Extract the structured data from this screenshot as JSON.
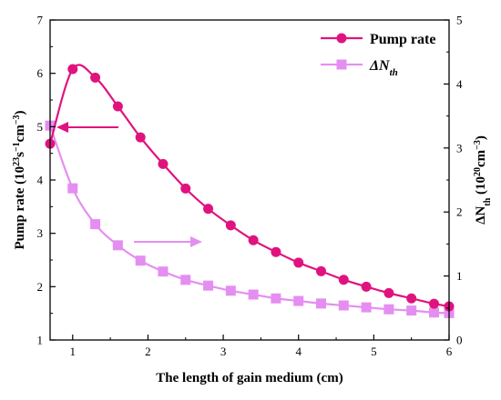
{
  "chart_data": {
    "type": "line",
    "xlabel": "The length of gain medium (cm)",
    "ylabel_left": {
      "main": "Pump rate (10",
      "sup1": "23",
      "mid1": "s",
      "sup2": "−1",
      "mid2": "cm",
      "sup3": "−3",
      "end": ")"
    },
    "ylabel_right": {
      "main": "ΔN",
      "sub": "th",
      "mid": " (10",
      "sup1": "20",
      "mid2": "cm",
      "sup2": "−3",
      "end": ")"
    },
    "xlim": [
      0.7,
      6
    ],
    "ylim_left": [
      1,
      7
    ],
    "ylim_right": [
      0,
      5
    ],
    "x_ticks": [
      1,
      2,
      3,
      4,
      5,
      6
    ],
    "y_left_ticks": [
      1,
      2,
      3,
      4,
      5,
      6,
      7
    ],
    "y_right_ticks": [
      0,
      1,
      2,
      3,
      4,
      5
    ],
    "legend_position": "top-right",
    "series": [
      {
        "name": "Pump rate",
        "axis": "left",
        "marker": "circle",
        "color": "#e0137e",
        "x": [
          0.7,
          1.0,
          1.3,
          1.6,
          1.9,
          2.2,
          2.5,
          2.8,
          3.1,
          3.4,
          3.7,
          4.0,
          4.3,
          4.6,
          4.9,
          5.2,
          5.5,
          5.8,
          6.0
        ],
        "y": [
          4.68,
          6.08,
          5.92,
          5.38,
          4.8,
          4.3,
          3.84,
          3.46,
          3.15,
          2.87,
          2.65,
          2.45,
          2.29,
          2.13,
          2.0,
          1.88,
          1.78,
          1.68,
          1.63
        ]
      },
      {
        "name_parts": {
          "main": "ΔN",
          "sub": "th"
        },
        "axis": "right",
        "marker": "square",
        "color": "#e58ef1",
        "x": [
          0.7,
          1.0,
          1.3,
          1.6,
          1.9,
          2.2,
          2.5,
          2.8,
          3.1,
          3.4,
          3.7,
          4.0,
          4.3,
          4.6,
          4.9,
          5.2,
          5.5,
          5.8,
          6.0
        ],
        "y": [
          3.35,
          2.37,
          1.81,
          1.48,
          1.24,
          1.07,
          0.94,
          0.85,
          0.77,
          0.71,
          0.65,
          0.61,
          0.57,
          0.54,
          0.51,
          0.48,
          0.46,
          0.43,
          0.42
        ]
      }
    ]
  }
}
